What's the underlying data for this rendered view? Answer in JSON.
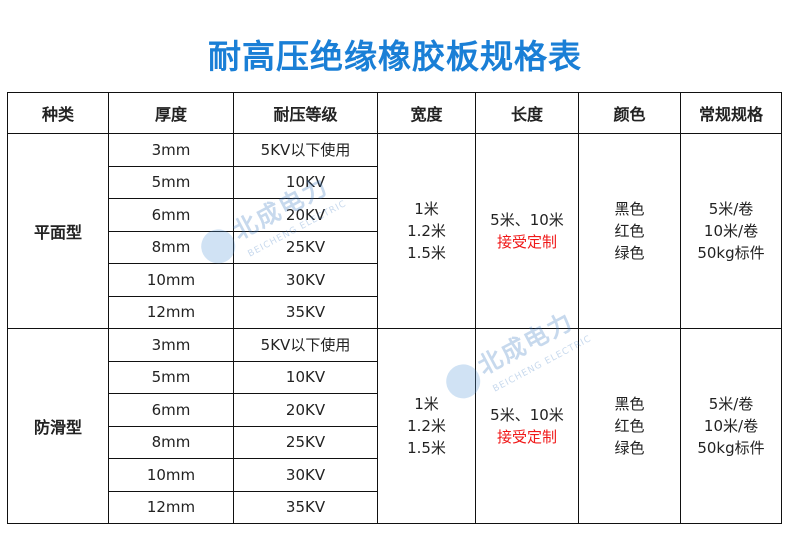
{
  "title": "耐高压绝缘橡胶板规格表",
  "headers": [
    "种类",
    "厚度",
    "耐压等级",
    "宽度",
    "长度",
    "颜色",
    "常规规格"
  ],
  "groups": [
    {
      "type": "平面型",
      "rows": [
        {
          "thickness": "3mm",
          "voltage": "5KV以下使用"
        },
        {
          "thickness": "5mm",
          "voltage": "10KV"
        },
        {
          "thickness": "6mm",
          "voltage": "20KV"
        },
        {
          "thickness": "8mm",
          "voltage": "25KV"
        },
        {
          "thickness": "10mm",
          "voltage": "30KV"
        },
        {
          "thickness": "12mm",
          "voltage": "35KV"
        }
      ],
      "widths": [
        "1米",
        "1.2米",
        "1.5米"
      ],
      "length": "5米、10米",
      "length_note": "接受定制",
      "colors": [
        "黑色",
        "红色",
        "绿色"
      ],
      "specs": [
        "5米/卷",
        "10米/卷",
        "50kg标件"
      ]
    },
    {
      "type": "防滑型",
      "rows": [
        {
          "thickness": "3mm",
          "voltage": "5KV以下使用"
        },
        {
          "thickness": "5mm",
          "voltage": "10KV"
        },
        {
          "thickness": "6mm",
          "voltage": "20KV"
        },
        {
          "thickness": "8mm",
          "voltage": "25KV"
        },
        {
          "thickness": "10mm",
          "voltage": "30KV"
        },
        {
          "thickness": "12mm",
          "voltage": "35KV"
        }
      ],
      "widths": [
        "1米",
        "1.2米",
        "1.5米"
      ],
      "length": "5米、10米",
      "length_note": "接受定制",
      "colors": [
        "黑色",
        "红色",
        "绿色"
      ],
      "specs": [
        "5米/卷",
        "10米/卷",
        "50kg标件"
      ]
    }
  ],
  "watermark": {
    "cn": "北成电力",
    "en": "BEICHENG ELECTRIC"
  },
  "colors": {
    "title": "#1a7fd6",
    "note": "#f01818",
    "border": "#111111"
  }
}
